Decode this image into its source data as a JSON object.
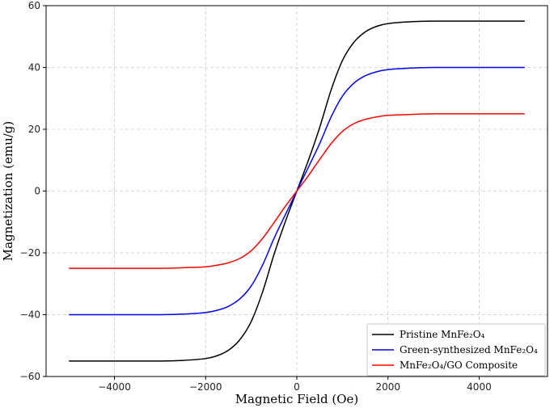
{
  "chart_data": {
    "type": "line",
    "xlabel": "Magnetic Field (Oe)",
    "ylabel": "Magnetization (emu/g)",
    "xlim": [
      -5500,
      5500
    ],
    "ylim": [
      -60,
      60
    ],
    "xticks": [
      -4000,
      -2000,
      0,
      2000,
      4000
    ],
    "xtick_labels": [
      "−4000",
      "−2000",
      "0",
      "2000",
      "4000"
    ],
    "yticks": [
      -60,
      -40,
      -20,
      0,
      20,
      40,
      60
    ],
    "ytick_labels": [
      "−60",
      "−40",
      "−20",
      "0",
      "20",
      "40",
      "60"
    ],
    "grid": true,
    "legend_position": "bottom-right",
    "x": [
      -5000,
      -4000,
      -3000,
      -2500,
      -2000,
      -1750,
      -1500,
      -1250,
      -1000,
      -750,
      -500,
      -250,
      0,
      250,
      500,
      750,
      1000,
      1250,
      1500,
      1750,
      2000,
      2500,
      3000,
      4000,
      5000
    ],
    "series": [
      {
        "name": "Pristine MnFe₂O₄",
        "color": "#000000",
        "values": [
          -55.0,
          -55.0,
          -55.0,
          -54.8,
          -54.2,
          -53.3,
          -51.5,
          -48.1,
          -42.2,
          -32.6,
          -20.5,
          -9.8,
          0,
          9.8,
          20.5,
          32.6,
          42.2,
          48.1,
          51.5,
          53.3,
          54.2,
          54.8,
          55.0,
          55.0,
          55.0
        ]
      },
      {
        "name": "Green-synthesized MnFe₂O₄",
        "color": "#0000ff",
        "values": [
          -40.0,
          -40.0,
          -40.0,
          -39.8,
          -39.3,
          -38.6,
          -37.3,
          -34.9,
          -30.7,
          -23.9,
          -15.3,
          -7.6,
          0,
          7.6,
          15.3,
          23.9,
          30.7,
          34.9,
          37.3,
          38.6,
          39.3,
          39.8,
          40.0,
          40.0,
          40.0
        ]
      },
      {
        "name": "MnFe₂O₄/GO Composite",
        "color": "#ff0000",
        "values": [
          -25.0,
          -25.0,
          -25.0,
          -24.8,
          -24.5,
          -24.0,
          -23.2,
          -21.8,
          -19.3,
          -15.3,
          -10.2,
          -4.9,
          0,
          4.9,
          10.2,
          15.3,
          19.3,
          21.8,
          23.2,
          24.0,
          24.5,
          24.8,
          25.0,
          25.0,
          25.0
        ]
      }
    ]
  }
}
